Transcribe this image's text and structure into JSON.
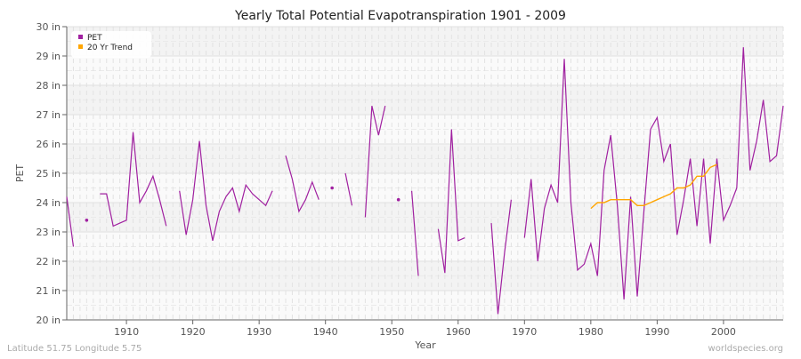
{
  "chart_data": {
    "type": "line",
    "title": "Yearly Total Potential Evapotranspiration 1901 - 2009",
    "xlabel": "Year",
    "ylabel": "PET",
    "xlim": [
      1901,
      2009
    ],
    "ylim": [
      20,
      30
    ],
    "x_ticks": [
      1910,
      1920,
      1930,
      1940,
      1950,
      1960,
      1970,
      1980,
      1990,
      2000
    ],
    "y_ticks": [
      "20 in",
      "21 in",
      "22 in",
      "23 in",
      "24 in",
      "25 in",
      "26 in",
      "27 in",
      "28 in",
      "29 in",
      "30 in"
    ],
    "grid": true,
    "legend_position": "top-left",
    "series": [
      {
        "name": "PET",
        "color": "#a020a0",
        "start_year": 1901,
        "values": [
          24.2,
          22.5,
          null,
          23.4,
          null,
          24.3,
          24.3,
          23.2,
          23.3,
          23.4,
          26.4,
          24.0,
          24.4,
          24.9,
          24.1,
          23.2,
          null,
          24.4,
          22.9,
          24.1,
          26.1,
          23.9,
          22.7,
          23.7,
          24.2,
          24.5,
          23.7,
          24.6,
          24.3,
          24.1,
          23.9,
          24.4,
          null,
          25.6,
          24.8,
          23.7,
          24.1,
          24.7,
          24.1,
          null,
          24.5,
          null,
          25.0,
          23.9,
          null,
          23.5,
          27.3,
          26.3,
          27.3,
          null,
          24.1,
          null,
          24.4,
          21.5,
          null,
          null,
          23.1,
          21.6,
          26.5,
          22.7,
          22.8,
          null,
          null,
          null,
          23.3,
          20.2,
          22.3,
          24.1,
          null,
          22.8,
          24.8,
          22.0,
          23.8,
          24.6,
          24.0,
          28.9,
          24.0,
          21.7,
          21.9,
          22.6,
          21.5,
          25.1,
          26.3,
          23.9,
          20.7,
          24.2,
          20.8,
          23.7,
          26.5,
          26.9,
          25.4,
          26.0,
          22.9,
          24.1,
          25.5,
          23.2,
          25.5,
          22.6,
          25.5,
          23.4,
          23.9,
          24.5,
          29.3,
          25.1,
          26.1,
          27.5,
          25.4,
          25.6,
          27.3
        ]
      },
      {
        "name": "20 Yr Trend",
        "color": "#ffa500",
        "start_year": 1980,
        "values": [
          23.8,
          24.0,
          24.0,
          24.1,
          24.1,
          24.1,
          24.1,
          23.9,
          23.9,
          24.0,
          24.1,
          24.2,
          24.3,
          24.5,
          24.5,
          24.6,
          24.9,
          24.9,
          25.2,
          25.3
        ]
      }
    ]
  },
  "footer": {
    "left": "Latitude 51.75 Longitude 5.75",
    "right": "worldspecies.org"
  }
}
